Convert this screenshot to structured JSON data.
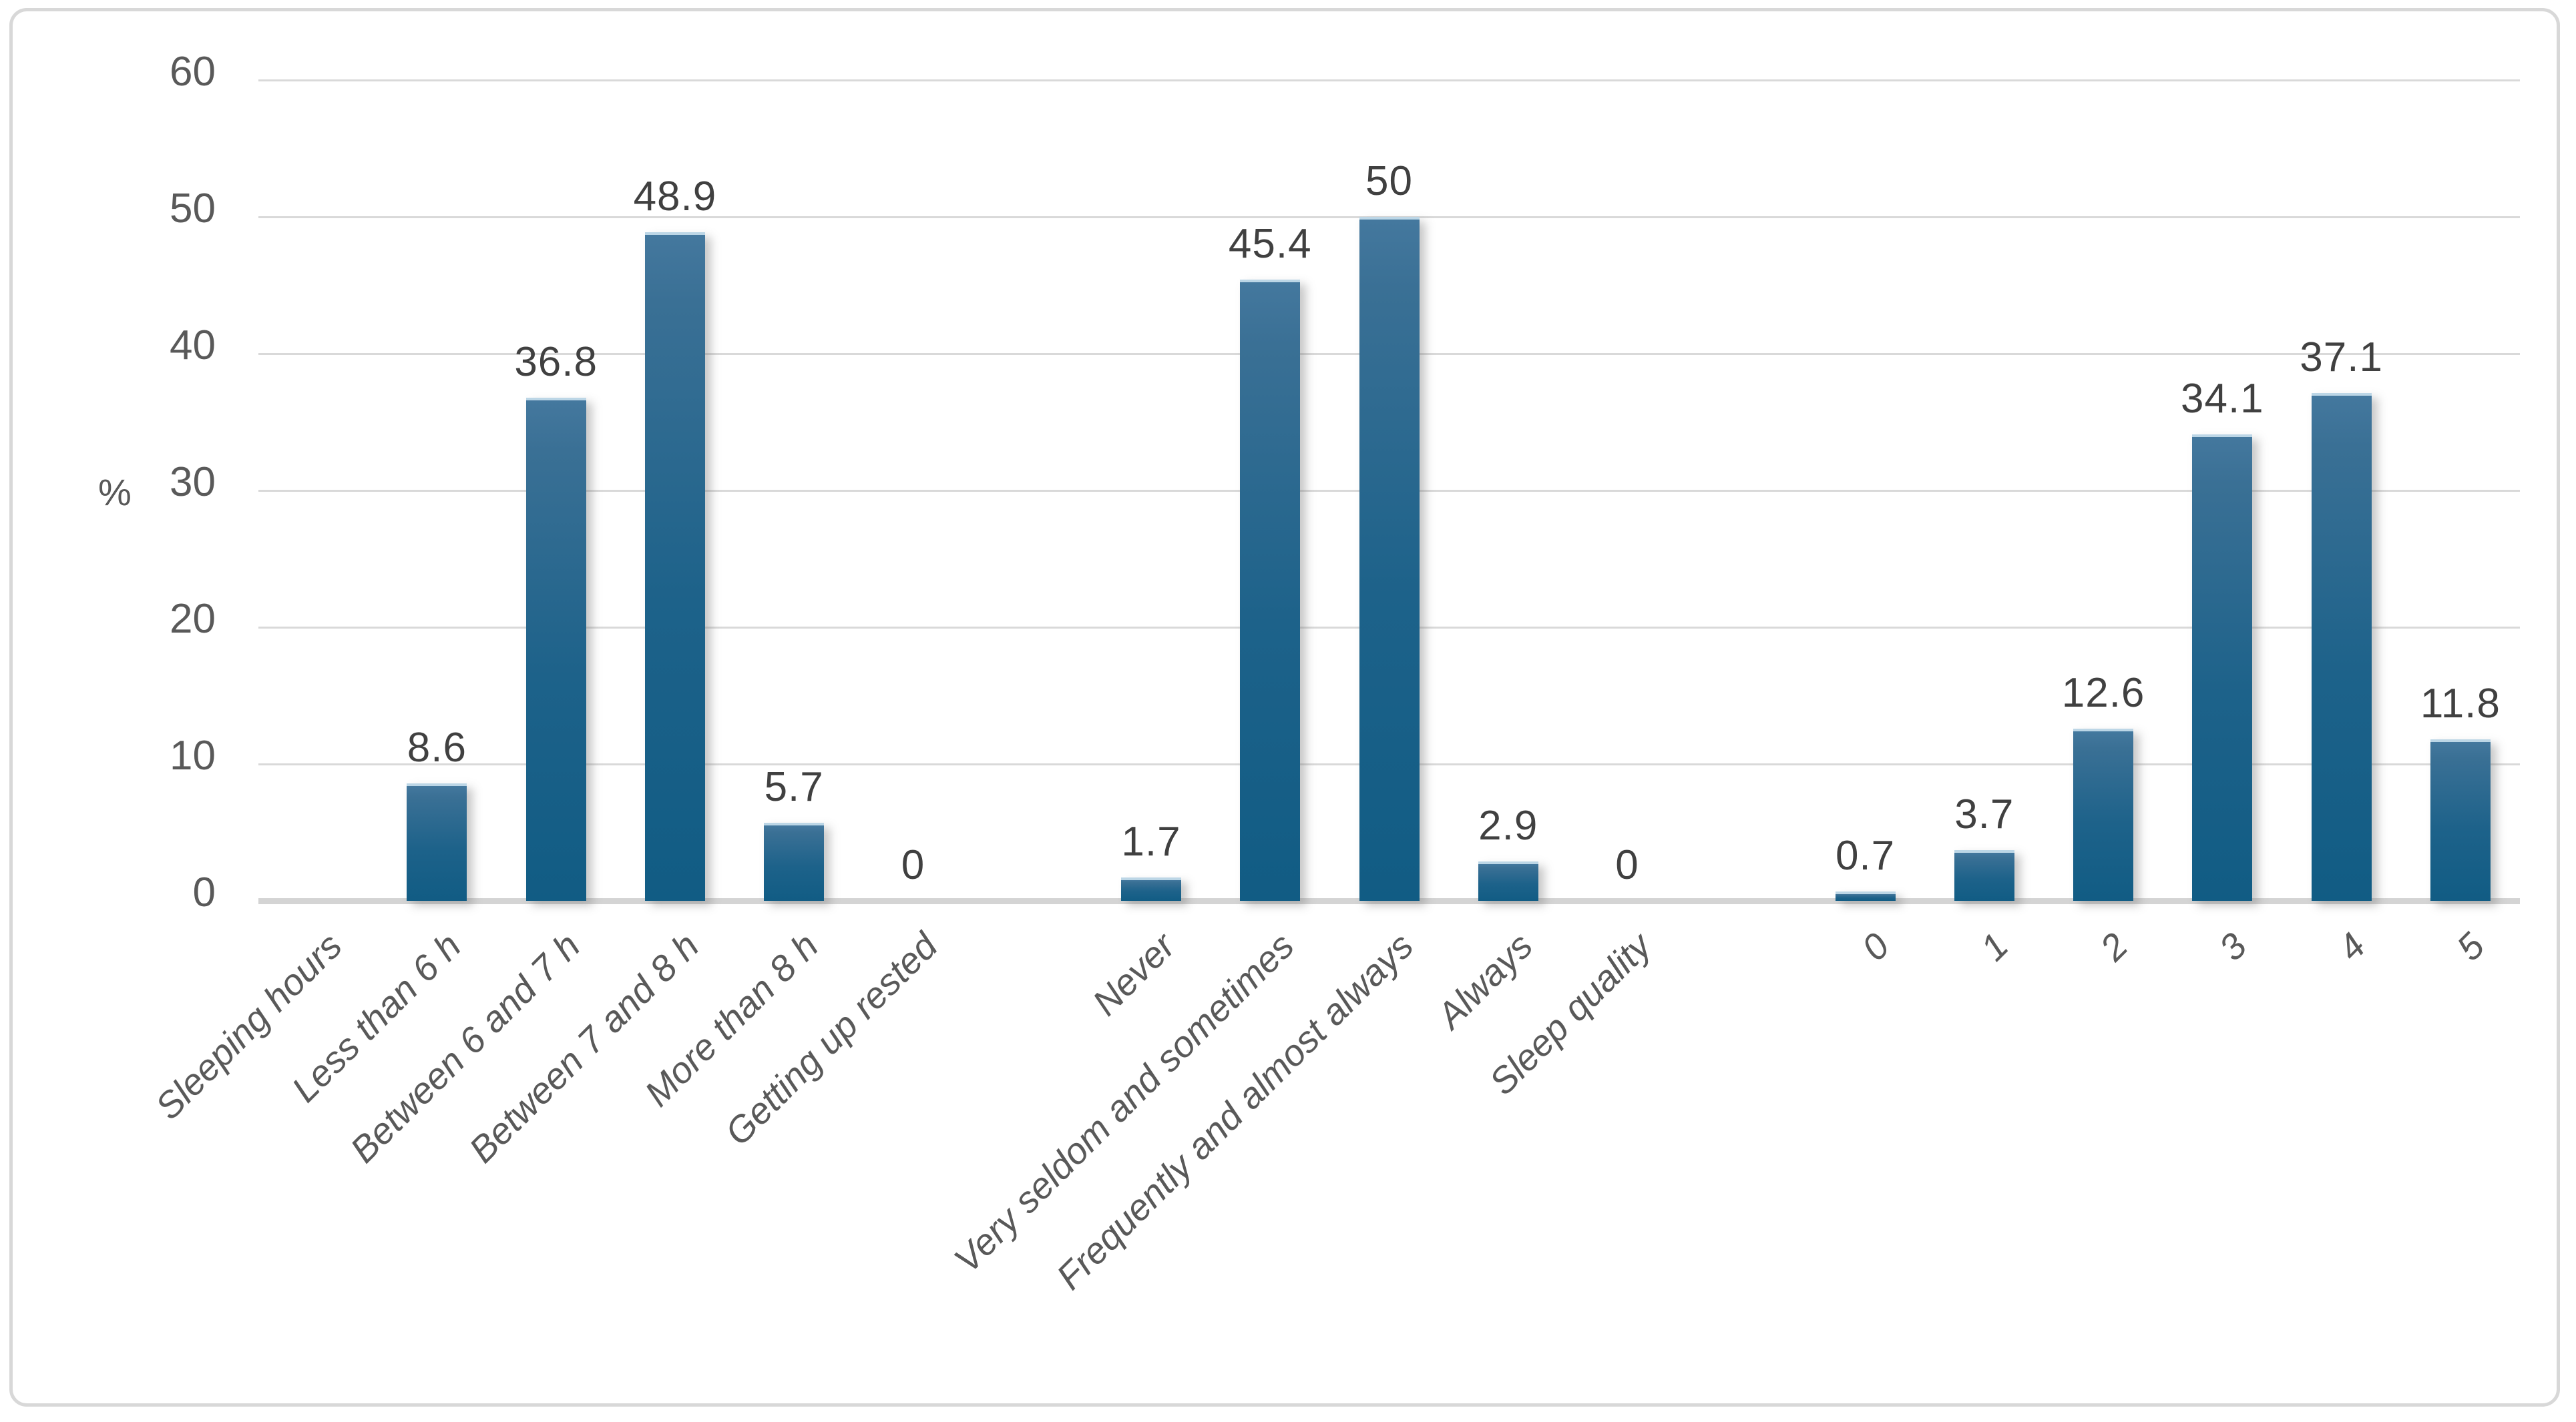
{
  "chart_data": {
    "type": "bar",
    "title": "",
    "xlabel": "",
    "ylabel": "%",
    "ylim": [
      0,
      60
    ],
    "yticks": [
      0,
      10,
      20,
      30,
      40,
      50,
      60
    ],
    "grid": true,
    "legend": false,
    "bar_color_top": "#40749a",
    "bar_color_bottom": "#115c84",
    "gridline_color": "#d9d9d9",
    "text_color": "#595959",
    "label_color": "#404040",
    "categories": [
      "Sleeping hours",
      "Less than 6 h",
      "Between 6 and 7 h",
      "Between 7 and 8 h",
      "More than 8 h",
      "Getting up rested",
      "",
      "Never",
      "Very seldom and sometimes",
      "Frequently and almost always",
      "Always",
      "Sleep quality",
      "",
      "0",
      "1",
      "2",
      "3",
      "4",
      "5"
    ],
    "values": [
      null,
      8.6,
      36.8,
      48.9,
      5.7,
      0,
      null,
      1.7,
      45.4,
      50,
      2.9,
      0,
      null,
      0.7,
      3.7,
      12.6,
      34.1,
      37.1,
      11.8
    ],
    "labels": [
      null,
      "8.6",
      "36.8",
      "48.9",
      "5.7",
      "0",
      null,
      "1.7",
      "45.4",
      "50",
      "2.9",
      "0",
      null,
      "0.7",
      "3.7",
      "12.6",
      "34.1",
      "37.1",
      "11.8"
    ]
  }
}
